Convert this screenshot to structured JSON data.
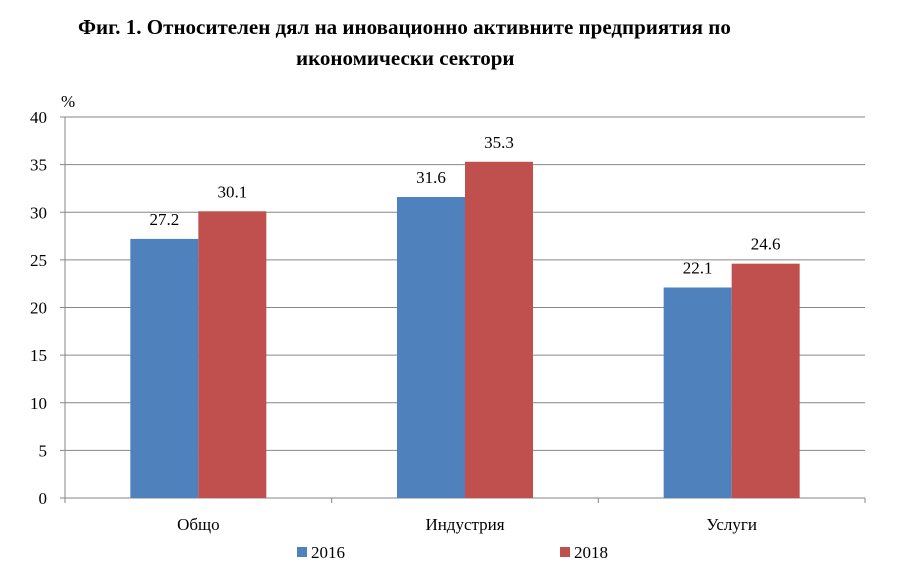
{
  "title_line1": "Фиг. 1. Относителен дял на иновационно активните предприятия  по",
  "title_line2": "икономически сектори",
  "chart_data": {
    "type": "bar",
    "categories": [
      "Общо",
      "Индустрия",
      "Услуги"
    ],
    "series": [
      {
        "name": "2016",
        "values": [
          27.2,
          31.6,
          22.1
        ],
        "color": "#4F81BD"
      },
      {
        "name": "2018",
        "values": [
          30.1,
          35.3,
          24.6
        ],
        "color": "#C0504D"
      }
    ],
    "ylabel": "%",
    "ylim": [
      0,
      40
    ],
    "yticks": [
      0,
      5,
      10,
      15,
      20,
      25,
      30,
      35,
      40
    ],
    "grid": true,
    "legend": "bottom"
  }
}
